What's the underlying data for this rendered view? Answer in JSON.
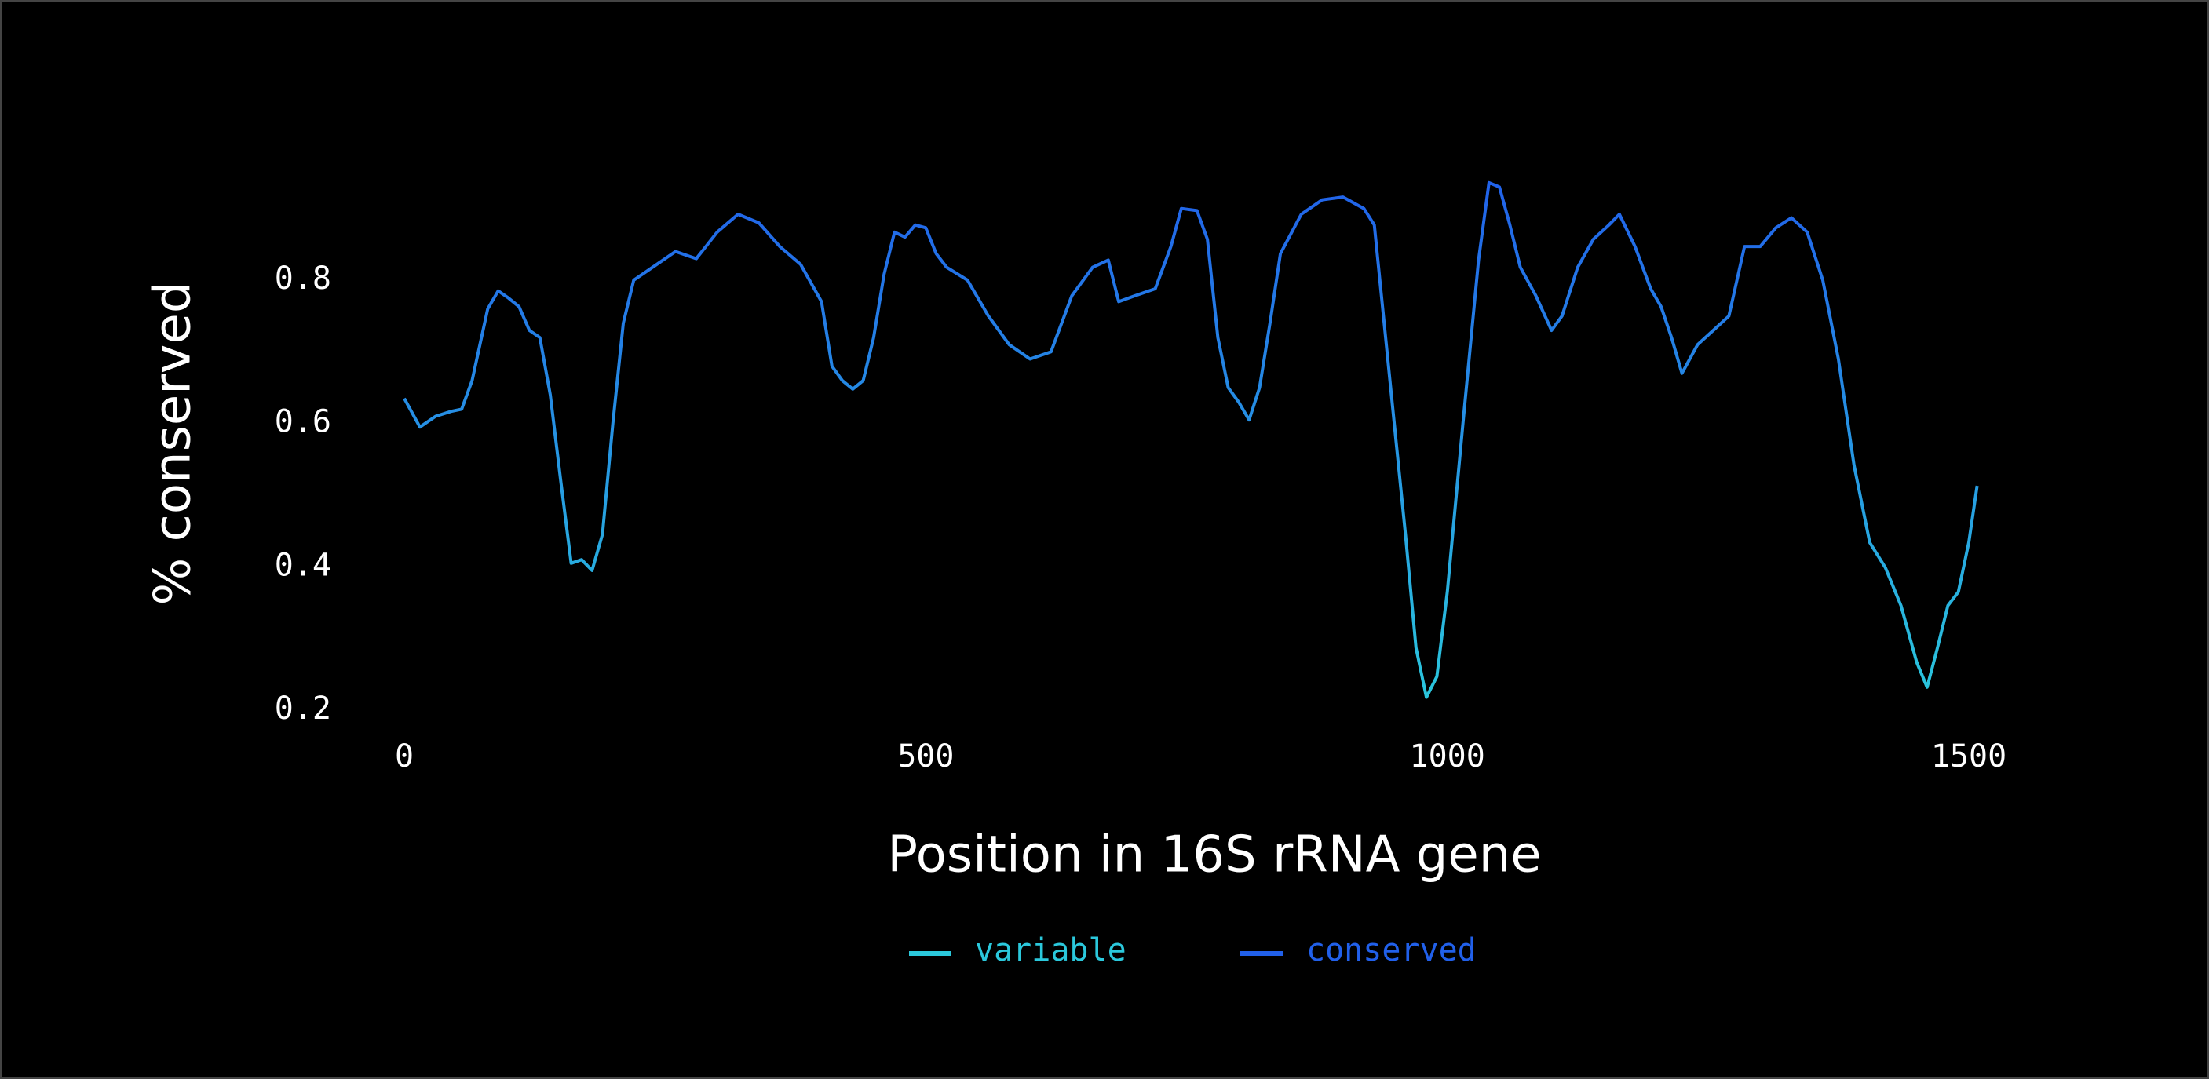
{
  "chart_data": {
    "type": "line",
    "x_label": "Position in 16S rRNA gene",
    "y_label": "% conserved",
    "x": [
      0,
      15,
      30,
      45,
      55,
      65,
      80,
      90,
      100,
      110,
      120,
      130,
      140,
      150,
      160,
      170,
      180,
      190,
      200,
      210,
      220,
      240,
      260,
      280,
      300,
      320,
      340,
      360,
      380,
      400,
      410,
      420,
      430,
      440,
      450,
      460,
      470,
      480,
      490,
      500,
      510,
      520,
      540,
      560,
      580,
      600,
      620,
      640,
      660,
      675,
      685,
      700,
      720,
      735,
      745,
      760,
      770,
      780,
      790,
      800,
      810,
      820,
      830,
      840,
      860,
      880,
      900,
      920,
      930,
      945,
      960,
      970,
      980,
      990,
      1000,
      1015,
      1030,
      1040,
      1050,
      1060,
      1070,
      1085,
      1100,
      1110,
      1125,
      1140,
      1155,
      1165,
      1180,
      1195,
      1205,
      1215,
      1225,
      1240,
      1255,
      1270,
      1285,
      1300,
      1315,
      1330,
      1345,
      1360,
      1375,
      1390,
      1405,
      1420,
      1435,
      1450,
      1460,
      1470,
      1480,
      1490,
      1500,
      1508
    ],
    "series": [
      {
        "values": [
          0.635,
          0.595,
          0.61,
          0.617,
          0.62,
          0.66,
          0.76,
          0.785,
          0.775,
          0.763,
          0.73,
          0.72,
          0.64,
          0.52,
          0.405,
          0.41,
          0.395,
          0.445,
          0.6,
          0.74,
          0.8,
          0.82,
          0.84,
          0.83,
          0.867,
          0.892,
          0.88,
          0.847,
          0.822,
          0.77,
          0.68,
          0.66,
          0.648,
          0.66,
          0.72,
          0.808,
          0.867,
          0.86,
          0.877,
          0.873,
          0.837,
          0.818,
          0.8,
          0.75,
          0.71,
          0.69,
          0.7,
          0.778,
          0.818,
          0.828,
          0.77,
          0.778,
          0.788,
          0.847,
          0.9,
          0.897,
          0.857,
          0.72,
          0.65,
          0.63,
          0.605,
          0.65,
          0.74,
          0.837,
          0.892,
          0.912,
          0.916,
          0.9,
          0.877,
          0.66,
          0.444,
          0.287,
          0.218,
          0.247,
          0.365,
          0.6,
          0.828,
          0.936,
          0.93,
          0.877,
          0.818,
          0.778,
          0.73,
          0.75,
          0.818,
          0.857,
          0.877,
          0.892,
          0.847,
          0.788,
          0.763,
          0.72,
          0.67,
          0.71,
          0.73,
          0.75,
          0.847,
          0.847,
          0.873,
          0.887,
          0.867,
          0.8,
          0.69,
          0.542,
          0.434,
          0.399,
          0.346,
          0.267,
          0.232,
          0.287,
          0.346,
          0.365,
          0.434,
          0.513
        ]
      }
    ],
    "legend": [
      {
        "name": "variable",
        "color": "#2bc8dc"
      },
      {
        "name": "conserved",
        "color": "#2160ea"
      }
    ],
    "xlim": [
      0,
      1520
    ],
    "ylim": [
      0.2,
      0.95
    ],
    "xticks": [
      0,
      500,
      1000,
      1500
    ],
    "yticks": [
      0.2,
      0.4,
      0.6,
      0.8
    ],
    "grid": false
  }
}
